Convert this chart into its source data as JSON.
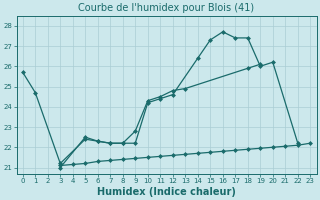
{
  "title": "Courbe de l'humidex pour Blois (41)",
  "xlabel": "Humidex (Indice chaleur)",
  "xlim": [
    -0.5,
    23.5
  ],
  "ylim": [
    20.7,
    28.5
  ],
  "yticks": [
    21,
    22,
    23,
    24,
    25,
    26,
    27,
    28
  ],
  "xticks": [
    0,
    1,
    2,
    3,
    4,
    5,
    6,
    7,
    8,
    9,
    10,
    11,
    12,
    13,
    14,
    15,
    16,
    17,
    18,
    19,
    20,
    21,
    22,
    23
  ],
  "background_color": "#cce8ec",
  "grid_color": "#aacdd4",
  "line_color": "#1a6b6b",
  "line1_x": [
    0,
    1,
    3,
    5,
    6,
    7,
    8,
    9,
    10,
    11,
    12,
    14,
    15,
    16,
    17,
    18,
    19,
    20,
    22
  ],
  "line1_y": [
    25.7,
    24.7,
    21.2,
    22.4,
    22.3,
    22.2,
    22.2,
    22.2,
    24.2,
    24.4,
    24.6,
    26.4,
    27.3,
    27.7,
    27.4,
    27.4,
    26.0,
    26.2,
    22.2
  ],
  "line2_x": [
    3,
    5,
    6,
    7,
    8,
    9,
    10,
    11,
    12,
    13,
    18,
    19
  ],
  "line2_y": [
    21.0,
    22.5,
    22.3,
    22.2,
    22.2,
    22.8,
    24.3,
    24.5,
    24.8,
    24.9,
    25.9,
    26.1
  ],
  "line3_x": [
    3,
    4,
    5,
    6,
    7,
    8,
    9,
    10,
    11,
    12,
    13,
    14,
    15,
    16,
    17,
    18,
    19,
    20,
    21,
    22,
    23
  ],
  "line3_y": [
    21.1,
    21.15,
    21.2,
    21.3,
    21.35,
    21.4,
    21.45,
    21.5,
    21.55,
    21.6,
    21.65,
    21.7,
    21.75,
    21.8,
    21.85,
    21.9,
    21.95,
    22.0,
    22.05,
    22.1,
    22.2
  ],
  "title_fontsize": 7,
  "xlabel_fontsize": 7,
  "tick_fontsize": 5,
  "lw": 0.9,
  "ms": 2.5
}
